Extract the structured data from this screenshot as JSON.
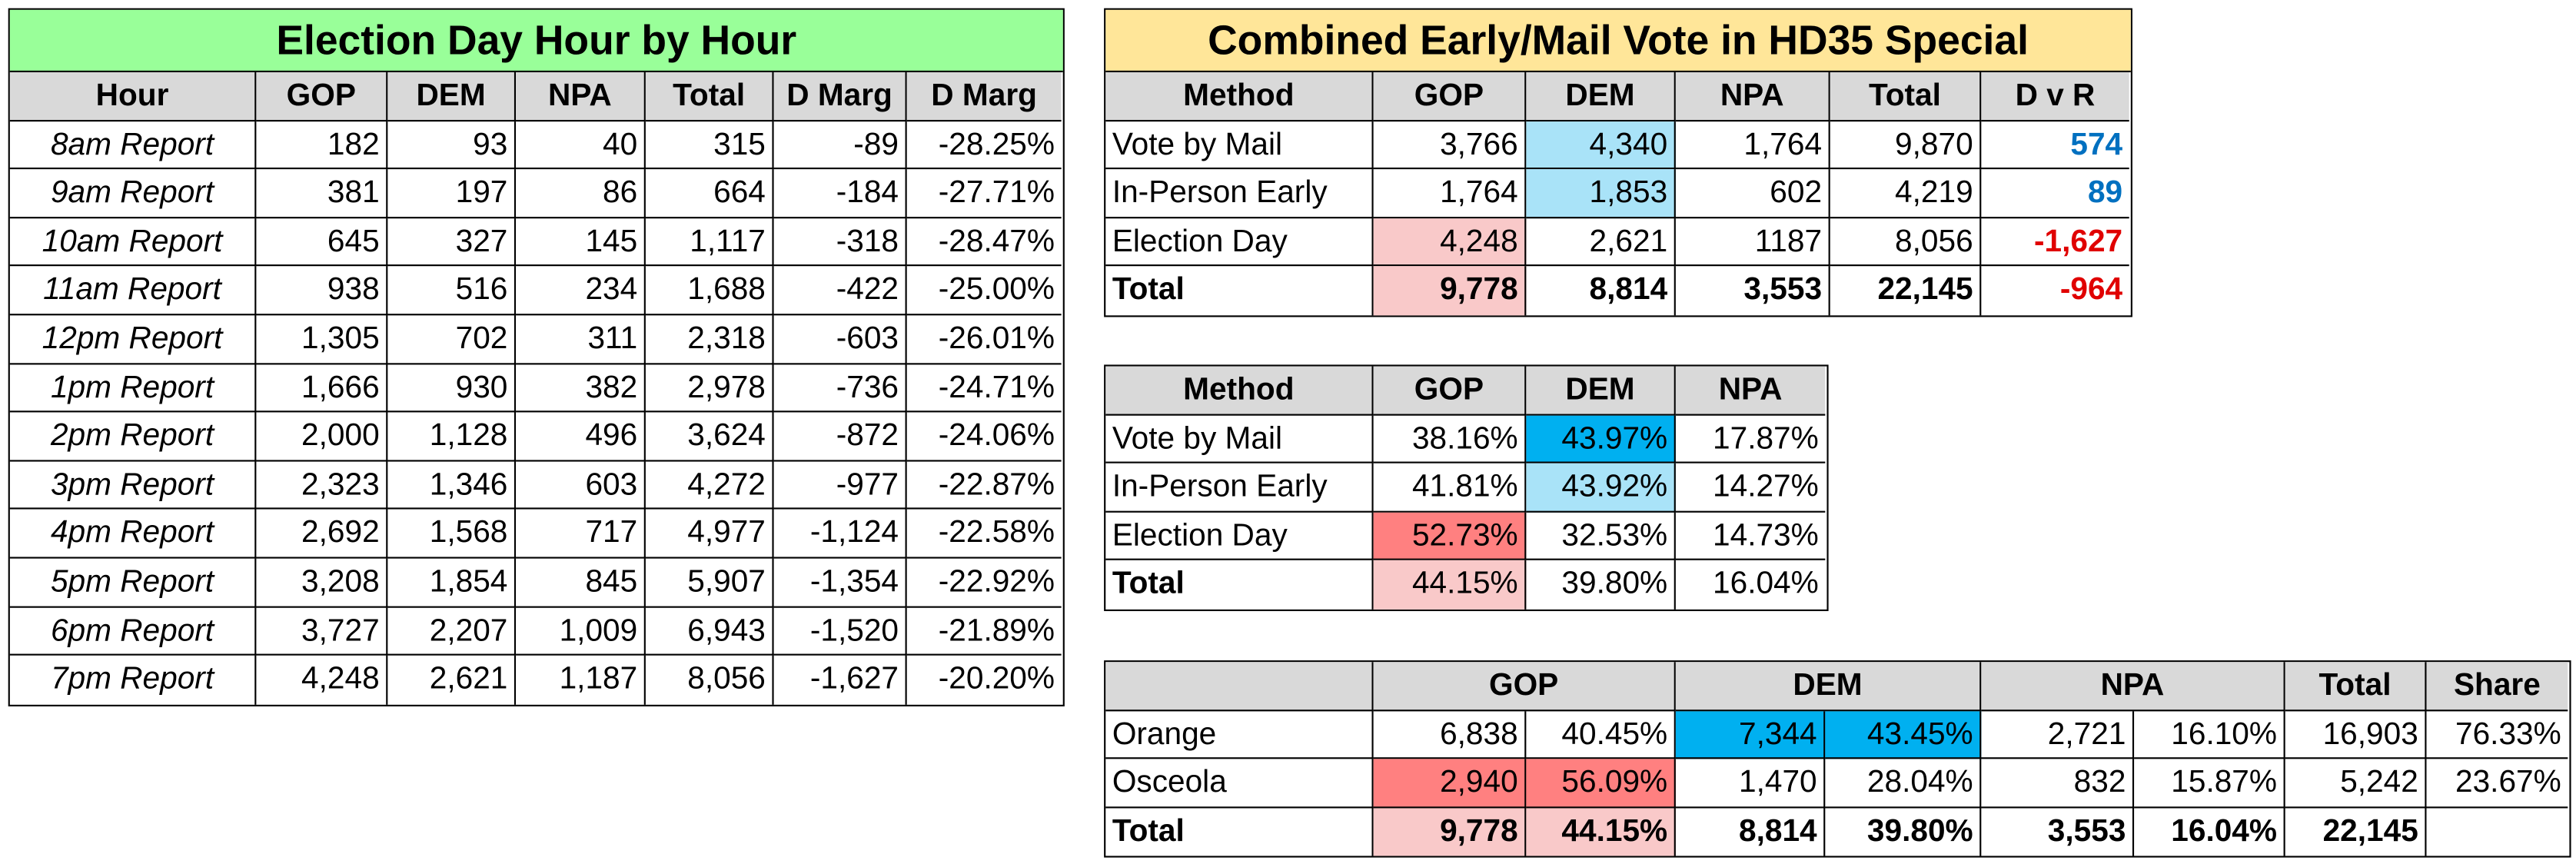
{
  "hourly": {
    "title": "Election Day Hour by Hour",
    "columns": [
      "Hour",
      "GOP",
      "DEM",
      "NPA",
      "Total",
      "D Marg",
      "D Marg"
    ],
    "rows": [
      [
        "8am Report",
        "182",
        "93",
        "40",
        "315",
        "-89",
        "-28.25%"
      ],
      [
        "9am Report",
        "381",
        "197",
        "86",
        "664",
        "-184",
        "-27.71%"
      ],
      [
        "10am Report",
        "645",
        "327",
        "145",
        "1,117",
        "-318",
        "-28.47%"
      ],
      [
        "11am Report",
        "938",
        "516",
        "234",
        "1,688",
        "-422",
        "-25.00%"
      ],
      [
        "12pm Report",
        "1,305",
        "702",
        "311",
        "2,318",
        "-603",
        "-26.01%"
      ],
      [
        "1pm Report",
        "1,666",
        "930",
        "382",
        "2,978",
        "-736",
        "-24.71%"
      ],
      [
        "2pm Report",
        "2,000",
        "1,128",
        "496",
        "3,624",
        "-872",
        "-24.06%"
      ],
      [
        "3pm Report",
        "2,323",
        "1,346",
        "603",
        "4,272",
        "-977",
        "-22.87%"
      ],
      [
        "4pm Report",
        "2,692",
        "1,568",
        "717",
        "4,977",
        "-1,124",
        "-22.58%"
      ],
      [
        "5pm Report",
        "3,208",
        "1,854",
        "845",
        "5,907",
        "-1,354",
        "-22.92%"
      ],
      [
        "6pm Report",
        "3,727",
        "2,207",
        "1,009",
        "6,943",
        "-1,520",
        "-21.89%"
      ],
      [
        "7pm Report",
        "4,248",
        "2,621",
        "1,187",
        "8,056",
        "-1,627",
        "-20.20%"
      ]
    ]
  },
  "combined": {
    "title": "Combined Early/Mail Vote in HD35 Special",
    "columns": [
      "Method",
      "GOP",
      "DEM",
      "NPA",
      "Total",
      "D v R"
    ],
    "rows": [
      [
        "Vote by Mail",
        "3,766",
        "4,340",
        "1,764",
        "9,870",
        "574"
      ],
      [
        "In-Person Early",
        "1,764",
        "1,853",
        "602",
        "4,219",
        "89"
      ],
      [
        "Election Day",
        "4,248",
        "2,621",
        "1187",
        "8,056",
        "-1,627"
      ],
      [
        "Total",
        "9,778",
        "8,814",
        "3,553",
        "22,145",
        "-964"
      ]
    ]
  },
  "shares": {
    "columns": [
      "Method",
      "GOP",
      "DEM",
      "NPA"
    ],
    "rows": [
      [
        "Vote by Mail",
        "38.16%",
        "43.97%",
        "17.87%"
      ],
      [
        "In-Person Early",
        "41.81%",
        "43.92%",
        "14.27%"
      ],
      [
        "Election Day",
        "52.73%",
        "32.53%",
        "14.73%"
      ],
      [
        "Total",
        "44.15%",
        "39.80%",
        "16.04%"
      ]
    ]
  },
  "county": {
    "columns": [
      "GOP",
      "DEM",
      "NPA",
      "Total",
      "Share"
    ],
    "rows": [
      [
        "Orange",
        "6,838",
        "40.45%",
        "7,344",
        "43.45%",
        "2,721",
        "16.10%",
        "16,903",
        "76.33%"
      ],
      [
        "Osceola",
        "2,940",
        "56.09%",
        "1,470",
        "28.04%",
        "832",
        "15.87%",
        "5,242",
        "23.67%"
      ],
      [
        "Total",
        "9,778",
        "44.15%",
        "8,814",
        "39.80%",
        "3,553",
        "16.04%",
        "22,145"
      ]
    ]
  }
}
